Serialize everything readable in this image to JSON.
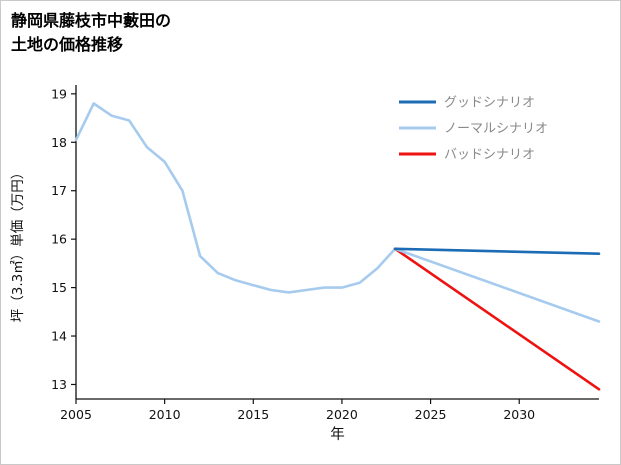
{
  "chart_data": {
    "type": "line",
    "title": "静岡県藤枝市中藪田の土地の価格推移",
    "title_line1": "静岡県藤枝市中藪田の",
    "title_line2": "土地の価格推移",
    "xlabel": "年",
    "ylabel": "坪（3.3㎡）単価（万円）",
    "xlim": [
      2005,
      2034.5
    ],
    "ylim": [
      12.7,
      19.1
    ],
    "x_ticks": [
      2005,
      2010,
      2015,
      2020,
      2025,
      2030
    ],
    "y_ticks": [
      13,
      14,
      15,
      16,
      17,
      18,
      19
    ],
    "grid": false,
    "axis_color": "#111111",
    "legend_position": "upper right",
    "legend_text_color": "#8a8a8a",
    "series": [
      {
        "id": "history",
        "color": "#a6cbee",
        "width": 2.6,
        "x": [
          2005,
          2006,
          2007,
          2008,
          2009,
          2010,
          2011,
          2012,
          2013,
          2014,
          2015,
          2016,
          2017,
          2018,
          2019,
          2020,
          2021,
          2022,
          2023
        ],
        "y": [
          18.05,
          18.8,
          18.55,
          18.45,
          17.9,
          17.6,
          17.0,
          15.65,
          15.3,
          15.15,
          15.05,
          14.95,
          14.9,
          14.95,
          15.0,
          15.0,
          15.1,
          15.4,
          15.8
        ]
      },
      {
        "id": "bad",
        "color": "#ee1311",
        "width": 2.6,
        "x": [
          2023,
          2034.5
        ],
        "y": [
          15.8,
          12.9
        ]
      },
      {
        "id": "normal",
        "color": "#a6cbee",
        "width": 2.6,
        "x": [
          2023,
          2034.5
        ],
        "y": [
          15.8,
          14.3
        ]
      },
      {
        "id": "good",
        "color": "#1b6cb5",
        "width": 2.6,
        "x": [
          2023,
          2034.5
        ],
        "y": [
          15.8,
          15.7
        ]
      }
    ],
    "legend": [
      {
        "label": "グッドシナリオ",
        "color": "#1b6cb5"
      },
      {
        "label": "ノーマルシナリオ",
        "color": "#a6cbee"
      },
      {
        "label": "バッドシナリオ",
        "color": "#ee1311"
      }
    ]
  }
}
